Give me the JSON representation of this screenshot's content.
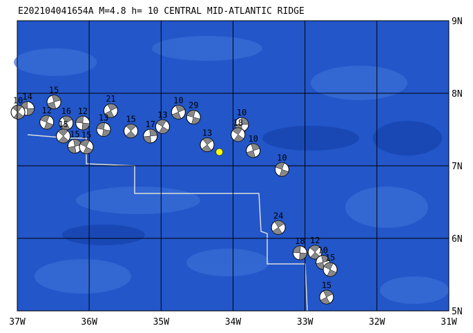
{
  "map": {
    "title": "E202104041654A M=4.8 h= 10 CENTRAL MID-ATLANTIC RIDGE",
    "xlim": [
      -37,
      -31
    ],
    "ylim": [
      5,
      9
    ],
    "xticks": [
      {
        "value": -37,
        "label": "37W"
      },
      {
        "value": -36,
        "label": "36W"
      },
      {
        "value": -35,
        "label": "35W"
      },
      {
        "value": -34,
        "label": "34W"
      },
      {
        "value": -33,
        "label": "33W"
      },
      {
        "value": -32,
        "label": "32W"
      },
      {
        "value": -31,
        "label": "31W"
      }
    ],
    "yticks": [
      {
        "value": 5,
        "label": "5N"
      },
      {
        "value": 6,
        "label": "6N"
      },
      {
        "value": 7,
        "label": "7N"
      },
      {
        "value": 8,
        "label": "8N"
      },
      {
        "value": 9,
        "label": "9N"
      }
    ],
    "main_event": {
      "lon": -34.19,
      "lat": 7.19,
      "color": "#ffff00"
    },
    "events": [
      {
        "lon": -36.86,
        "lat": 7.79,
        "depth": "14"
      },
      {
        "lon": -36.99,
        "lat": 7.74,
        "depth": "10"
      },
      {
        "lon": -36.49,
        "lat": 7.88,
        "depth": "15"
      },
      {
        "lon": -36.59,
        "lat": 7.6,
        "depth": "12"
      },
      {
        "lon": -36.32,
        "lat": 7.59,
        "depth": "16"
      },
      {
        "lon": -36.09,
        "lat": 7.59,
        "depth": "12"
      },
      {
        "lon": -36.36,
        "lat": 7.41,
        "depth": "15"
      },
      {
        "lon": -36.2,
        "lat": 7.27,
        "depth": "15"
      },
      {
        "lon": -36.04,
        "lat": 7.26,
        "depth": "15"
      },
      {
        "lon": -35.7,
        "lat": 7.76,
        "depth": "21"
      },
      {
        "lon": -35.8,
        "lat": 7.5,
        "depth": "13"
      },
      {
        "lon": -35.42,
        "lat": 7.48,
        "depth": "15"
      },
      {
        "lon": -35.15,
        "lat": 7.41,
        "depth": "17"
      },
      {
        "lon": -34.98,
        "lat": 7.54,
        "depth": "13"
      },
      {
        "lon": -34.76,
        "lat": 7.74,
        "depth": "10"
      },
      {
        "lon": -34.55,
        "lat": 7.67,
        "depth": "29"
      },
      {
        "lon": -34.36,
        "lat": 7.29,
        "depth": "13"
      },
      {
        "lon": -33.88,
        "lat": 7.57,
        "depth": "10"
      },
      {
        "lon": -33.93,
        "lat": 7.43,
        "depth": "18"
      },
      {
        "lon": -33.72,
        "lat": 7.21,
        "depth": "10"
      },
      {
        "lon": -33.32,
        "lat": 6.95,
        "depth": "10"
      },
      {
        "lon": -33.37,
        "lat": 6.15,
        "depth": "24"
      },
      {
        "lon": -33.07,
        "lat": 5.8,
        "depth": "18"
      },
      {
        "lon": -32.86,
        "lat": 5.81,
        "depth": "12"
      },
      {
        "lon": -32.75,
        "lat": 5.67,
        "depth": "10"
      },
      {
        "lon": -32.65,
        "lat": 5.57,
        "depth": "15"
      },
      {
        "lon": -32.7,
        "lat": 5.19,
        "depth": "15"
      }
    ]
  }
}
